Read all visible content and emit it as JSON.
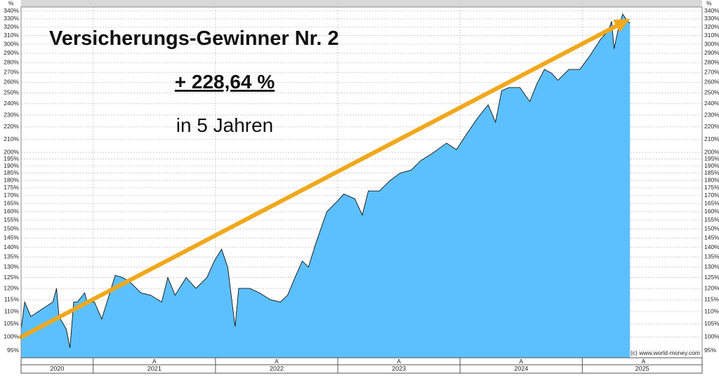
{
  "chart_data": {
    "type": "area",
    "title": "Versicherungs-Gewinner Nr. 2",
    "subtitle": "+ 228,64 %",
    "subtitle2": "in 5 Jahren",
    "credit": "(c) www.world-money.com",
    "axis_unit_label": "%",
    "log_scale": true,
    "grid": true,
    "fill_color": "#5cc0ff",
    "line_color": "#111111",
    "xlim": [
      2020.41,
      2025.98
    ],
    "xticks": [
      2021,
      2022,
      2023,
      2024,
      2025
    ],
    "year_labels": [
      2020,
      2021,
      2022,
      2023,
      2024,
      2025
    ],
    "markers": [
      {
        "x": 2021.5,
        "label": "A"
      },
      {
        "x": 2022.5,
        "label": "A"
      },
      {
        "x": 2023.5,
        "label": "A"
      },
      {
        "x": 2024.5,
        "label": "A"
      },
      {
        "x": 2025.5,
        "label": "A"
      }
    ],
    "ylim": [
      92.5,
      345
    ],
    "yticks": [
      {
        "value": 95,
        "label": "95%"
      },
      {
        "value": 100,
        "label": "100%"
      },
      {
        "value": 105,
        "label": "105%"
      },
      {
        "value": 110,
        "label": "110%"
      },
      {
        "value": 115,
        "label": "115%"
      },
      {
        "value": 120,
        "label": "120%"
      },
      {
        "value": 125,
        "label": "125%"
      },
      {
        "value": 130,
        "label": "130%"
      },
      {
        "value": 135,
        "label": "135%"
      },
      {
        "value": 140,
        "label": "140%"
      },
      {
        "value": 145,
        "label": "145%"
      },
      {
        "value": 150,
        "label": "150%"
      },
      {
        "value": 155,
        "label": "155%"
      },
      {
        "value": 160,
        "label": "160%"
      },
      {
        "value": 165,
        "label": "165%"
      },
      {
        "value": 170,
        "label": "170%"
      },
      {
        "value": 175,
        "label": "175%"
      },
      {
        "value": 180,
        "label": "180%"
      },
      {
        "value": 185,
        "label": "185%"
      },
      {
        "value": 190,
        "label": "190%"
      },
      {
        "value": 195,
        "label": "195%"
      },
      {
        "value": 200,
        "label": "200%"
      },
      {
        "value": 210,
        "label": "210%"
      },
      {
        "value": 220,
        "label": "220%"
      },
      {
        "value": 230,
        "label": "230%"
      },
      {
        "value": 240,
        "label": "240%"
      },
      {
        "value": 250,
        "label": "250%"
      },
      {
        "value": 260,
        "label": "260%"
      },
      {
        "value": 270,
        "label": "270%"
      },
      {
        "value": 280,
        "label": "280%"
      },
      {
        "value": 290,
        "label": "290%"
      },
      {
        "value": 300,
        "label": "300%"
      },
      {
        "value": 310,
        "label": "310%"
      },
      {
        "value": 320,
        "label": "320%"
      },
      {
        "value": 330,
        "label": "330%"
      },
      {
        "value": 340,
        "label": "340%"
      }
    ],
    "trend_arrow": {
      "color": "#f0a81c",
      "from": [
        2020.41,
        100
      ],
      "to": [
        2025.39,
        330
      ]
    },
    "x": [
      2020.41,
      2020.44,
      2020.49,
      2020.58,
      2020.67,
      2020.7,
      2020.72,
      2020.78,
      2020.81,
      2020.84,
      2020.87,
      2020.93,
      2020.95,
      2021.01,
      2021.07,
      2021.13,
      2021.18,
      2021.24,
      2021.3,
      2021.39,
      2021.47,
      2021.56,
      2021.61,
      2021.67,
      2021.76,
      2021.84,
      2021.93,
      2021.99,
      2022.05,
      2022.1,
      2022.16,
      2022.19,
      2022.28,
      2022.36,
      2022.45,
      2022.53,
      2022.59,
      2022.65,
      2022.71,
      2022.76,
      2022.82,
      2022.91,
      2022.99,
      2023.05,
      2023.14,
      2023.2,
      2023.25,
      2023.34,
      2023.43,
      2023.51,
      2023.6,
      2023.68,
      2023.77,
      2023.89,
      2023.97,
      2024.06,
      2024.14,
      2024.23,
      2024.29,
      2024.34,
      2024.4,
      2024.49,
      2024.57,
      2024.63,
      2024.69,
      2024.75,
      2024.8,
      2024.89,
      2024.98,
      2025.06,
      2025.15,
      2025.21,
      2025.24,
      2025.26,
      2025.29,
      2025.33,
      2025.37,
      2025.39
    ],
    "values": [
      103,
      114,
      108,
      111,
      114,
      120,
      108,
      103,
      96,
      114,
      114,
      118,
      114,
      114,
      107,
      117,
      126,
      125,
      123,
      118,
      117,
      114,
      125,
      117,
      125,
      120,
      125,
      133,
      139,
      130,
      104,
      120,
      120,
      118,
      115,
      114,
      117,
      125,
      133,
      130,
      142,
      160,
      166,
      171,
      168,
      158,
      173,
      173,
      180,
      185,
      187,
      194,
      199,
      207,
      202,
      215,
      227,
      239,
      224,
      252,
      255,
      255,
      242,
      259,
      273,
      269,
      262,
      273,
      273,
      287,
      306,
      315,
      327,
      295,
      315,
      336,
      327,
      325
    ]
  }
}
